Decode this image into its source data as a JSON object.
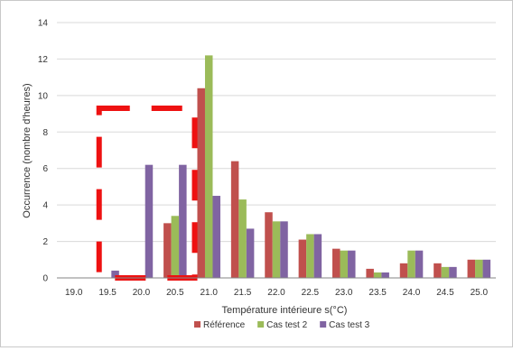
{
  "chart_data": {
    "type": "bar",
    "xlabel": "Température intérieure s(°C)",
    "ylabel": "Occurrence (nombre d'heures)",
    "ylim": [
      0,
      14
    ],
    "y_ticks": [
      "0",
      "2",
      "4",
      "6",
      "8",
      "10",
      "12",
      "14"
    ],
    "categories": [
      "19.0",
      "19.5",
      "20.0",
      "20.5",
      "21.0",
      "21.5",
      "22.0",
      "22.5",
      "23.0",
      "23.5",
      "24.0",
      "24.5",
      "25.0"
    ],
    "series": [
      {
        "name": "Référence",
        "color": "#c0504d",
        "values": [
          0,
          0,
          0.1,
          3.0,
          10.4,
          6.4,
          3.6,
          2.1,
          1.6,
          0.5,
          0.8,
          0.8,
          1.0
        ]
      },
      {
        "name": "Cas test 2",
        "color": "#9bbb59",
        "values": [
          0,
          0,
          0,
          3.4,
          12.2,
          4.3,
          3.1,
          2.4,
          1.5,
          0.3,
          1.5,
          0.6,
          1.0
        ]
      },
      {
        "name": "Cas test 3",
        "color": "#8064a2",
        "values": [
          0,
          0.4,
          6.2,
          6.2,
          4.5,
          2.7,
          3.1,
          2.4,
          1.5,
          0.3,
          1.5,
          0.6,
          1.0
        ]
      }
    ],
    "grid": "horizontal",
    "legend_position": "bottom",
    "annotation": {
      "shape": "dashed-rectangle",
      "color": "#ee1111",
      "from_category": "19.5",
      "to_category": "20.5",
      "y_range": [
        0,
        9.3
      ]
    }
  }
}
